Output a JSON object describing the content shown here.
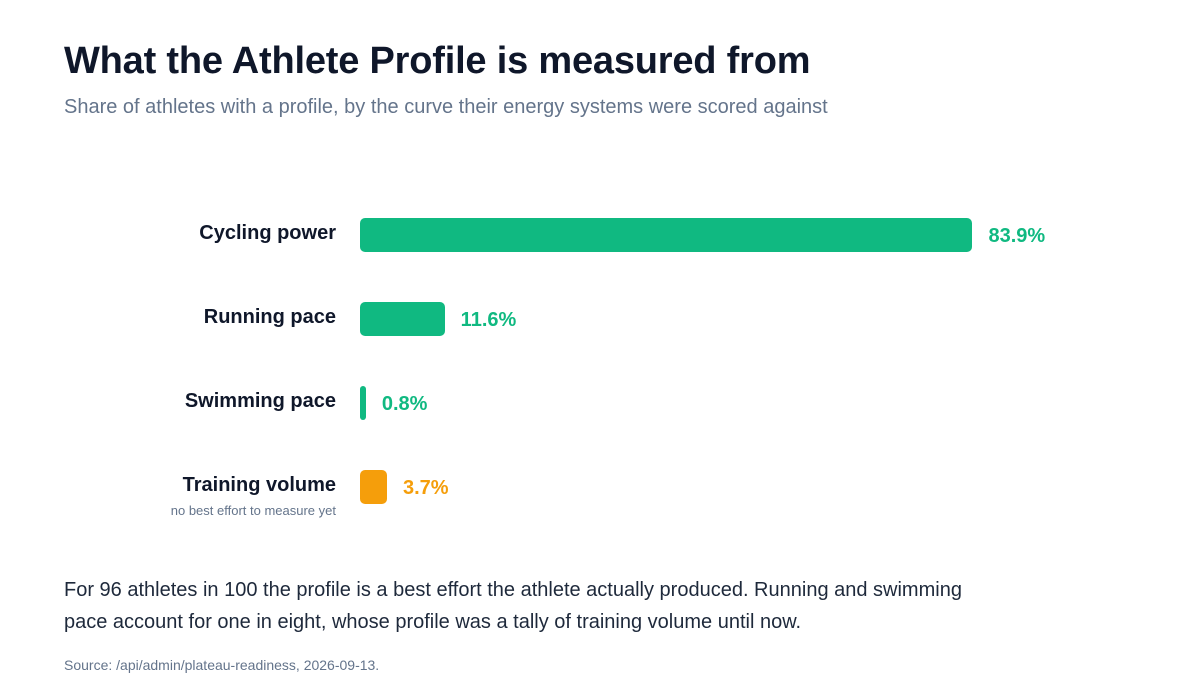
{
  "title": "What the Athlete Profile is measured from",
  "subtitle": "Share of athletes with a profile, by the curve their energy systems were scored against",
  "chart_data": {
    "type": "bar",
    "orientation": "horizontal",
    "categories": [
      "Cycling power",
      "Running pace",
      "Swimming pace",
      "Training volume"
    ],
    "values": [
      83.9,
      11.6,
      0.8,
      3.7
    ],
    "value_labels": [
      "83.9%",
      "11.6%",
      "0.8%",
      "3.7%"
    ],
    "category_notes": [
      "",
      "",
      "",
      "no best effort to measure yet"
    ],
    "colors": [
      "#10b981",
      "#10b981",
      "#10b981",
      "#f59e0b"
    ],
    "xlim": [
      0,
      100
    ],
    "grid": false,
    "legend": "none"
  },
  "note": "For 96 athletes in 100 the profile is a best effort the athlete actually produced. Running and swimming pace account for one in eight, whose profile was a tally of training volume until now.",
  "source": "Source: /api/admin/plateau-readiness, 2026-09-13."
}
